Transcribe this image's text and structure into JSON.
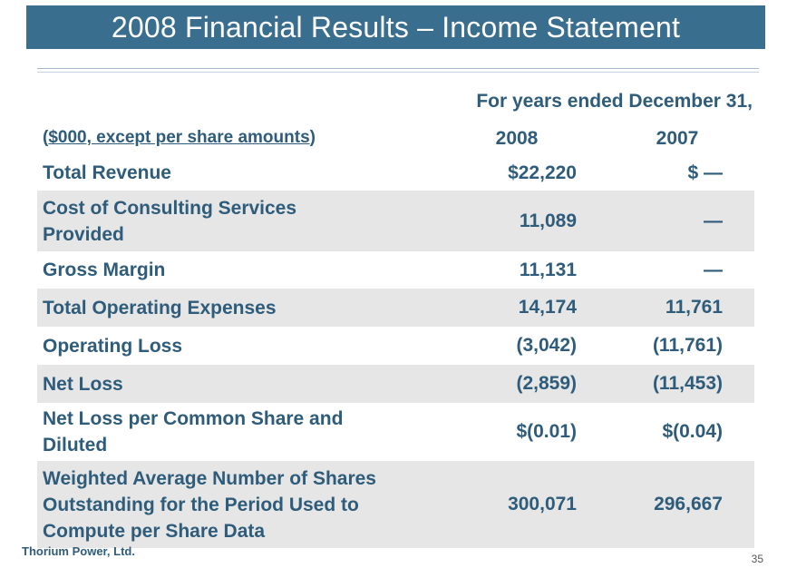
{
  "slide": {
    "title": "2008 Financial Results – Income Statement",
    "period_header": "For years ended December 31,",
    "units_open": "(",
    "units_text": "$000, except per share amounts",
    "units_close": ")",
    "year_1": "2008",
    "year_2": "2007",
    "footer_company": "Thorium Power, Ltd.",
    "page_number": "35"
  },
  "rows": [
    {
      "label": "Total Revenue",
      "v2008": "$22,220",
      "v2007": "$ —"
    },
    {
      "label": "Cost of Consulting Services Provided",
      "v2008": "11,089",
      "v2007": "—"
    },
    {
      "label": "Gross Margin",
      "v2008": "11,131",
      "v2007": "—"
    },
    {
      "label": "Total Operating Expenses",
      "v2008": "14,174",
      "v2007": "11,761"
    },
    {
      "label": "Operating Loss",
      "v2008": "(3,042)",
      "v2007": "(11,761)"
    },
    {
      "label": "Net Loss",
      "v2008": "(2,859)",
      "v2007": "(11,453)"
    },
    {
      "label": "Net Loss per Common Share and Diluted",
      "v2008": "$(0.01)",
      "v2007": "$(0.04)"
    },
    {
      "label": "Weighted Average Number of Shares Outstanding for the Period Used to Compute per Share Data",
      "v2008": "300,071",
      "v2007": "296,667"
    }
  ],
  "colors": {
    "title_bar": "#3a6e8f",
    "text": "#2e5c7a",
    "row_shade": "#e6e6e6"
  }
}
